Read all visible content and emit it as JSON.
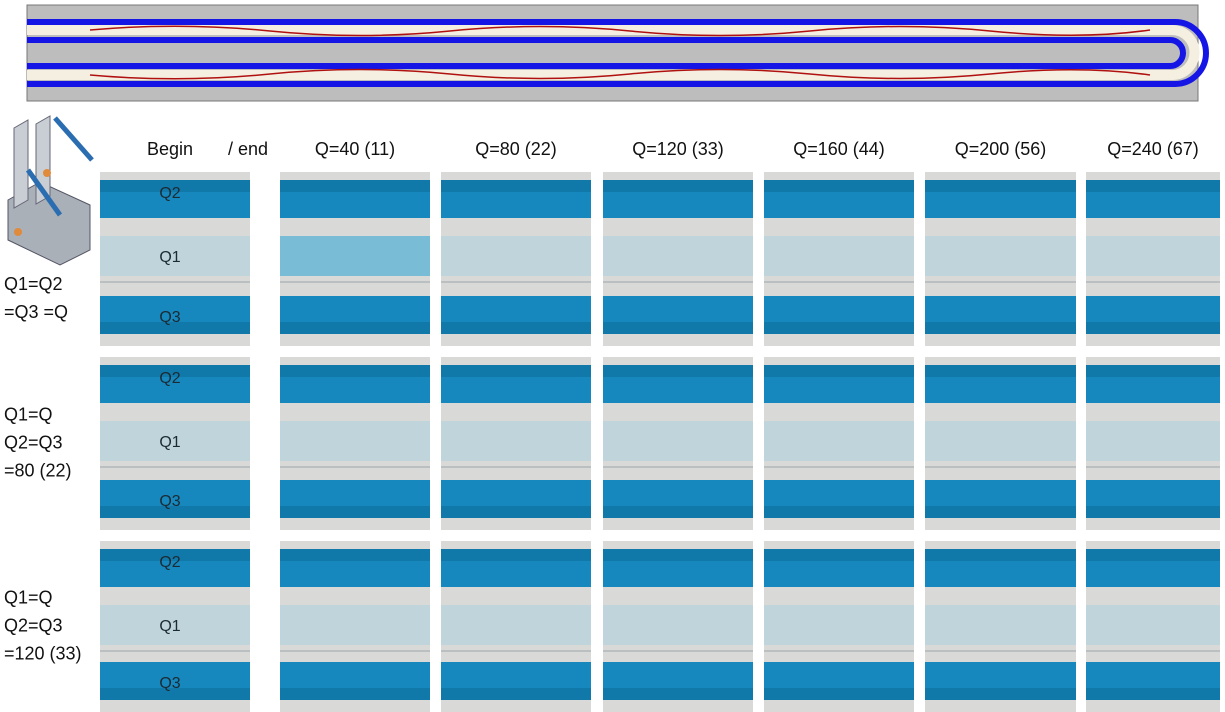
{
  "header": {
    "begin": "Begin",
    "end": "/ end",
    "columns": [
      "Q=40 (11)",
      "Q=80 (22)",
      "Q=120 (33)",
      "Q=160 (44)",
      "Q=200 (56)",
      "Q=240 (67)"
    ]
  },
  "rows": [
    {
      "label": [
        "Q1=Q2",
        "=Q3 =Q"
      ],
      "channels": [
        "Q2",
        "Q1",
        "Q3"
      ]
    },
    {
      "label": [
        "Q1=Q",
        "Q2=Q3",
        "=80 (22)"
      ],
      "channels": [
        "Q2",
        "Q1",
        "Q3"
      ]
    },
    {
      "label": [
        "Q1=Q",
        "Q2=Q3",
        "=120 (33)"
      ],
      "channels": [
        "Q2",
        "Q1",
        "Q3"
      ]
    }
  ]
}
